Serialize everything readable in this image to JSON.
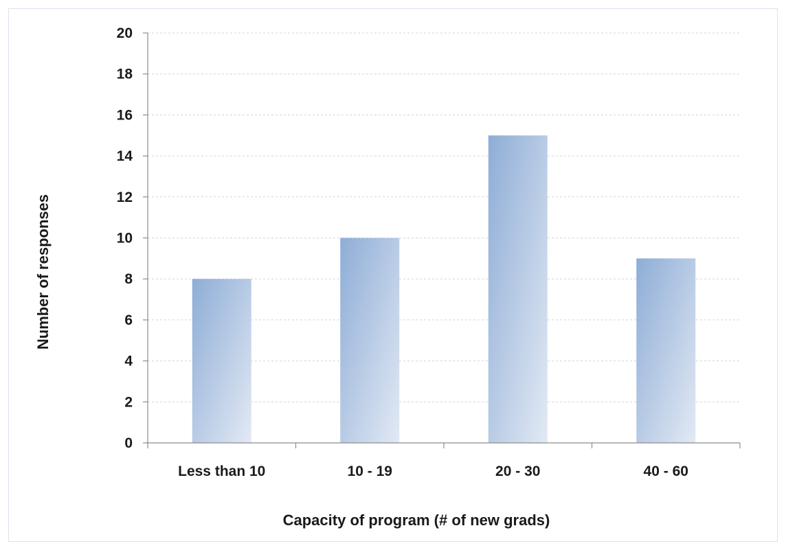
{
  "chart_data": {
    "type": "bar",
    "title": "",
    "xlabel": "Capacity of program (# of new grads)",
    "ylabel": "Number of responses",
    "categories": [
      "Less than 10",
      "10 - 19",
      "20 - 30",
      "40 - 60"
    ],
    "values": [
      8,
      10,
      15,
      9
    ],
    "ylim": [
      0,
      20
    ],
    "yticks": [
      "0",
      "2",
      "4",
      "6",
      "8",
      "10",
      "12",
      "14",
      "16",
      "18",
      "20"
    ],
    "grid": true,
    "legend": "none",
    "colors": {
      "bar_dark": "#8eadd6",
      "bar_light": "#e2e9f4",
      "gridline": "#c9d6e6",
      "axis": "#8c8c8c"
    }
  }
}
